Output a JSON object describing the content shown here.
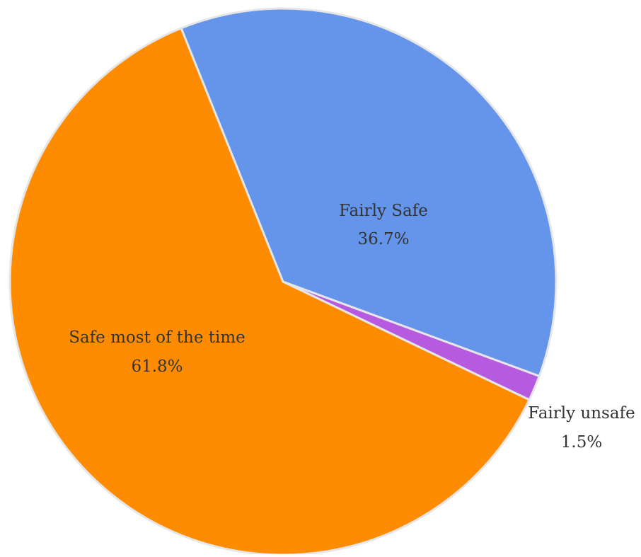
{
  "chart_data": {
    "type": "pie",
    "title": "",
    "slices": [
      {
        "label": "Fairly Safe",
        "value": 36.7,
        "value_label": "36.7%",
        "color": "#6495ea"
      },
      {
        "label": "Fairly unsafe",
        "value": 1.5,
        "value_label": "1.5%",
        "color": "#b65ae0"
      },
      {
        "label": "Safe most of the time",
        "value": 61.8,
        "value_label": "61.8%",
        "color": "#ff8c00"
      }
    ],
    "legend": "none",
    "slice_border_color": "#e6e6e6"
  }
}
